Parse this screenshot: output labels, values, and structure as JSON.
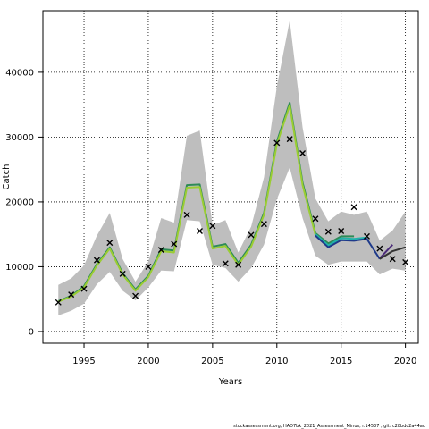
{
  "chart_data": {
    "type": "line",
    "title": "",
    "xlabel": "Years",
    "ylabel": "Catch",
    "xlim": [
      1991.8,
      2021.0
    ],
    "ylim": [
      -1800,
      49500
    ],
    "xticks": [
      1995,
      2000,
      2005,
      2010,
      2015,
      2020
    ],
    "yticks": [
      0,
      10000,
      20000,
      30000,
      40000
    ],
    "grid": true,
    "band": {
      "name": "confidence interval",
      "color": "#bebebe",
      "x": [
        1993,
        1994,
        1995,
        1996,
        1997,
        1998,
        1999,
        2000,
        2001,
        2002,
        2003,
        2004,
        2005,
        2006,
        2007,
        2008,
        2009,
        2010,
        2011,
        2012,
        2013,
        2014,
        2015,
        2016,
        2017,
        2018,
        2019,
        2020
      ],
      "upper": [
        7200,
        8200,
        10200,
        14800,
        18300,
        11200,
        7700,
        10800,
        17500,
        16800,
        30200,
        31000,
        16400,
        17200,
        12200,
        16200,
        23800,
        37800,
        48000,
        31500,
        20500,
        17000,
        18500,
        18000,
        18500,
        14000,
        15600,
        18500
      ],
      "lower": [
        2500,
        3200,
        4300,
        7300,
        9200,
        6300,
        4800,
        6800,
        9400,
        9300,
        17200,
        17000,
        10300,
        9800,
        7700,
        9800,
        13400,
        20400,
        25300,
        17500,
        11700,
        10300,
        10800,
        10800,
        10800,
        8800,
        9700,
        9400
      ]
    },
    "series": [
      {
        "name": "",
        "color": "#2e8b57",
        "x": [
          1993,
          1994,
          1995,
          1996,
          1997,
          1998,
          1999,
          2000,
          2001,
          2002,
          2003,
          2004,
          2005,
          2006,
          2007,
          2008,
          2009,
          2010,
          2011,
          2012,
          2013,
          2014,
          2015,
          2016
        ],
        "values": [
          4700,
          5500,
          7000,
          10400,
          13000,
          9000,
          6500,
          8600,
          12700,
          12500,
          22600,
          22700,
          13100,
          13500,
          10600,
          13400,
          18300,
          29300,
          35300,
          23000,
          15200,
          13600,
          14700,
          14700
        ]
      },
      {
        "name": "",
        "color": "#9acd32",
        "x": [
          1993,
          1994,
          1995,
          1996,
          1997,
          1998,
          1999,
          2000,
          2001,
          2002,
          2003,
          2004,
          2005,
          2006,
          2007,
          2008,
          2009,
          2010,
          2011,
          2012,
          2013,
          2014,
          2015
        ],
        "values": [
          4600,
          5400,
          6800,
          10200,
          12800,
          8800,
          6300,
          8400,
          12400,
          12200,
          22200,
          22300,
          12800,
          13200,
          10300,
          13100,
          18000,
          28900,
          34900,
          22600,
          14900,
          13200,
          14300
        ]
      },
      {
        "name": "",
        "color": "#20b2aa",
        "x": [
          2013,
          2014,
          2015,
          2016,
          2017
        ],
        "values": [
          15000,
          13300,
          14400,
          14300,
          14500
        ]
      },
      {
        "name": "",
        "color": "#1e3a8a",
        "x": [
          2013,
          2014,
          2015,
          2016,
          2017,
          2018
        ],
        "values": [
          14800,
          13000,
          14100,
          14000,
          14300,
          11200
        ]
      },
      {
        "name": "",
        "color": "#4b2a7a",
        "x": [
          2018,
          2019
        ],
        "values": [
          11300,
          13400
        ]
      },
      {
        "name": "",
        "color": "#333333",
        "x": [
          2018,
          2019,
          2020
        ],
        "values": [
          11200,
          12400,
          13000
        ]
      }
    ],
    "observations": {
      "marker": "x",
      "x": [
        1993,
        1994,
        1995,
        1996,
        1997,
        1998,
        1999,
        2000,
        2001,
        2002,
        2003,
        2004,
        2005,
        2006,
        2007,
        2008,
        2009,
        2010,
        2011,
        2012,
        2013,
        2014,
        2015,
        2016,
        2017,
        2018,
        2019,
        2020
      ],
      "values": [
        4500,
        5700,
        6600,
        11000,
        13700,
        8900,
        5500,
        10000,
        12600,
        13500,
        18000,
        15500,
        16300,
        10500,
        10300,
        14900,
        16600,
        29100,
        29700,
        27500,
        17400,
        15400,
        15500,
        19200,
        14700,
        12800,
        11200,
        10700
      ]
    }
  },
  "footer": "stockassessment.org, HAD7bk_2021_Assessment_Minus, r.14537 , git: c28bdc2a44ad"
}
